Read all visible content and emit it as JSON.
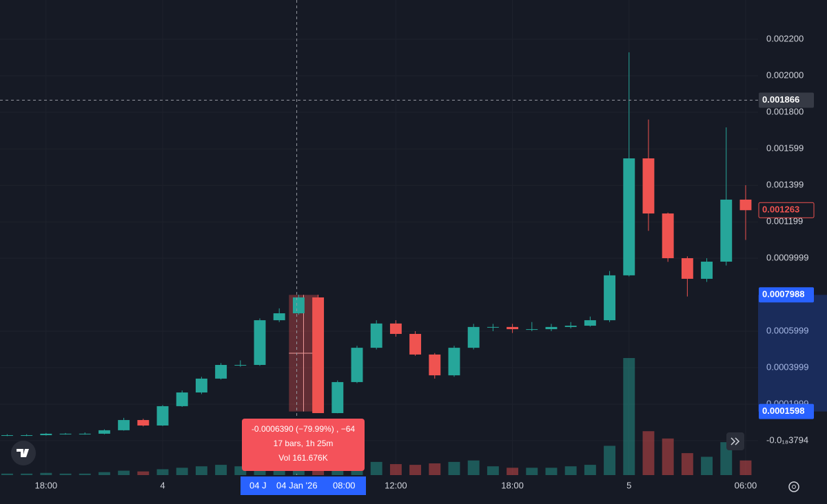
{
  "chart_data": {
    "type": "candlestick",
    "x": [
      -8,
      -7,
      -6,
      -5,
      -4,
      -3,
      -2,
      -1,
      0,
      1,
      2,
      3,
      4,
      5,
      6,
      7,
      8,
      9,
      10,
      11,
      12,
      13,
      14,
      15,
      16,
      17,
      18,
      19,
      20,
      21,
      22,
      23,
      24,
      25,
      26,
      27,
      28,
      29,
      30
    ],
    "open": [
      3e-05,
      3e-05,
      3e-05,
      3.8e-05,
      3.8e-05,
      3.8e-05,
      5.7e-05,
      0.000113,
      8.3e-05,
      0.000189,
      0.000264,
      0.00034,
      0.000415,
      0.000415,
      0.00066,
      0.000698,
      0.000785,
      0.000151,
      0.000321,
      0.000509,
      0.000642,
      0.000585,
      0.000472,
      0.000358,
      0.000509,
      0.000623,
      0.000623,
      0.000611,
      0.000611,
      0.000623,
      0.00063,
      0.00066,
      0.000906,
      0.001547,
      0.001245,
      0.001,
      0.000887,
      0.000981,
      0.001321
    ],
    "high": [
      3.5e-05,
      3.5e-05,
      4.2e-05,
      4.2e-05,
      4.5e-05,
      6.2e-05,
      0.000125,
      0.00012,
      0.000195,
      0.000275,
      0.00035,
      0.000425,
      0.00044,
      0.00067,
      0.000725,
      0.0008,
      0.0008,
      0.00033,
      0.00052,
      0.00066,
      0.00066,
      0.0006,
      0.00048,
      0.00052,
      0.00064,
      0.00064,
      0.00064,
      0.00065,
      0.00064,
      0.00065,
      0.00068,
      0.00093,
      0.002128,
      0.00176,
      0.00125,
      0.00101,
      0.001,
      0.001717,
      0.0014
    ],
    "low": [
      2.5e-05,
      2.5e-05,
      2.8e-05,
      3.3e-05,
      3.3e-05,
      3.5e-05,
      5.5e-05,
      7.8e-05,
      8e-05,
      0.000185,
      0.000255,
      0.000335,
      0.000405,
      0.00041,
      0.00065,
      0.00069,
      0.00016,
      0.00015,
      0.000315,
      0.0005,
      0.00057,
      0.000465,
      0.00034,
      0.00035,
      0.0005,
      0.0006,
      0.00059,
      0.0006,
      0.0006,
      0.000615,
      0.000625,
      0.00065,
      0.0009,
      0.00115,
      0.00098,
      0.00079,
      0.00087,
      0.00096,
      0.0011
    ],
    "close": [
      3e-05,
      3e-05,
      3.8e-05,
      3.8e-05,
      3.8e-05,
      5.7e-05,
      0.000113,
      8.3e-05,
      0.000189,
      0.000264,
      0.00034,
      0.000415,
      0.000415,
      0.00066,
      0.000698,
      0.000785,
      0.000151,
      0.000321,
      0.000509,
      0.000642,
      0.000585,
      0.000472,
      0.000358,
      0.000509,
      0.000623,
      0.000623,
      0.000611,
      0.000611,
      0.000623,
      0.00063,
      0.00066,
      0.000906,
      0.001547,
      0.001245,
      0.001,
      0.000887,
      0.000981,
      0.001321,
      0.001263
    ],
    "volume": [
      2,
      2,
      3,
      2,
      2,
      4,
      6,
      5,
      8,
      10,
      12,
      14,
      12,
      18,
      16,
      20,
      45,
      25,
      20,
      18,
      15,
      14,
      16,
      18,
      20,
      12,
      10,
      10,
      10,
      12,
      14,
      40,
      160,
      60,
      50,
      30,
      25,
      45,
      20
    ],
    "up_color": "#26a69a",
    "down_color": "#ef5350",
    "xlim": [
      -8.37,
      30.64
    ],
    "xticks": [
      {
        "value": -6,
        "label": "18:00"
      },
      {
        "value": 0,
        "label": "4"
      },
      {
        "value": 12,
        "label": "12:00"
      },
      {
        "value": 18,
        "label": "18:00"
      },
      {
        "value": 24,
        "label": "5"
      },
      {
        "value": 30,
        "label": "06:00"
      }
    ],
    "ylim": [
      -0.0001887,
      0.002415
    ],
    "yticks": [
      {
        "value": 0.0022,
        "label": "0.002200"
      },
      {
        "value": 0.002,
        "label": "0.002000"
      },
      {
        "value": 0.0018,
        "label": "0.001800"
      },
      {
        "value": 0.001599,
        "label": "0.001599"
      },
      {
        "value": 0.001399,
        "label": "0.001399"
      },
      {
        "value": 0.001199,
        "label": "0.001199"
      },
      {
        "value": 0.0009999,
        "label": "0.0009999"
      },
      {
        "value": 0.0005999,
        "label": "0.0005999"
      },
      {
        "value": 0.0003999,
        "label": "0.0003999"
      },
      {
        "value": 0.0001999,
        "label": "0.0001999"
      },
      {
        "value": -3.794e-20,
        "label": "-0.0₁₈3794"
      }
    ],
    "grid": true,
    "last_price": 0.001263,
    "crosshair": {
      "x": 6.9,
      "price": 0.001866
    },
    "measure": {
      "x_start": 6.5,
      "x_end": 8,
      "high": 0.0007988,
      "low": 0.0001598,
      "lines": [
        "-0.0006390 (−79.99%) , −64",
        "17 bars, 1h 25m",
        "Vol 161.676K"
      ],
      "time_labels": [
        "04 J",
        "04 Jan '26",
        "08:00"
      ]
    }
  }
}
